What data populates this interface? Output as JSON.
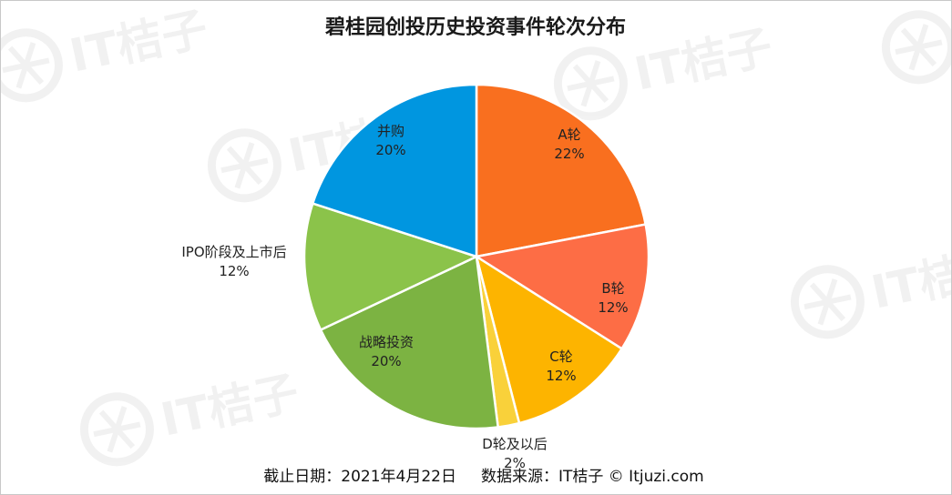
{
  "chart_data": {
    "type": "pie",
    "title": "碧桂园创投历史投资事件轮次分布",
    "slices": [
      {
        "label": "A轮",
        "percent_label": "22%",
        "value": 22,
        "color": "#f96f1f"
      },
      {
        "label": "B轮",
        "percent_label": "12%",
        "value": 12,
        "color": "#fd6d45"
      },
      {
        "label": "C轮",
        "percent_label": "12%",
        "value": 12,
        "color": "#fdb400"
      },
      {
        "label": "D轮及以后",
        "percent_label": "2%",
        "value": 2,
        "color": "#f9d13a"
      },
      {
        "label": "战略投资",
        "percent_label": "20%",
        "value": 20,
        "color": "#7cb342"
      },
      {
        "label": "IPO阶段及上市后",
        "percent_label": "12%",
        "value": 12,
        "color": "#8bc34a"
      },
      {
        "label": "并购",
        "percent_label": "20%",
        "value": 20,
        "color": "#0096e0"
      }
    ],
    "legend": "none"
  },
  "footer": {
    "text": "截止日期：2021年4月22日     数据来源：IT桔子 © Itjuzi.com"
  },
  "watermark": {
    "text": "IT桔子"
  }
}
